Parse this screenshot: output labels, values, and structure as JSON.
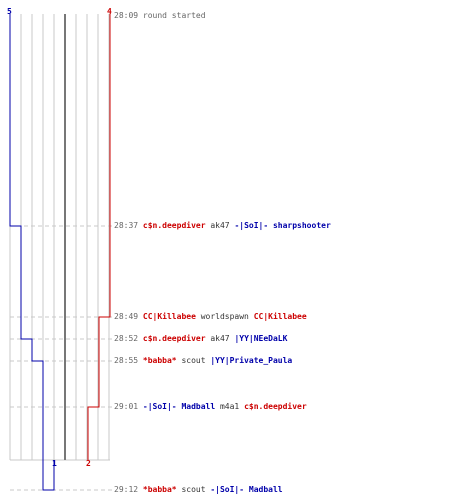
{
  "colors": {
    "team_red": "#cc0000",
    "team_blue": "#0000aa",
    "grid": "#c8c8c8",
    "center_line": "#777777",
    "dash": "#c8c8c8",
    "time": "#666666"
  },
  "score_labels": {
    "blue_top": "5",
    "red_top": "4",
    "blue_bottom": "1",
    "red_bottom": "2"
  },
  "events": [
    {
      "time": "28:09",
      "parts": [
        {
          "text": "round started",
          "cls": "time"
        }
      ]
    },
    {
      "time": "28:37",
      "parts": [
        {
          "text": "c$n.deepdiver",
          "cls": "red"
        },
        {
          "text": " ak47 ",
          "cls": "plain"
        },
        {
          "text": "-|SoI|- sharpshooter",
          "cls": "blue"
        }
      ]
    },
    {
      "time": "28:49",
      "parts": [
        {
          "text": "CC|Killabee",
          "cls": "red"
        },
        {
          "text": " worldspawn ",
          "cls": "plain"
        },
        {
          "text": "CC|Killabee",
          "cls": "red"
        }
      ]
    },
    {
      "time": "28:52",
      "parts": [
        {
          "text": "c$n.deepdiver",
          "cls": "red"
        },
        {
          "text": " ak47 ",
          "cls": "plain"
        },
        {
          "text": "|YY|NEeDaLK",
          "cls": "blue"
        }
      ]
    },
    {
      "time": "28:55",
      "parts": [
        {
          "text": "*babba*",
          "cls": "red"
        },
        {
          "text": " scout ",
          "cls": "plain"
        },
        {
          "text": "|YY|Private_Paula",
          "cls": "blue"
        }
      ]
    },
    {
      "time": "29:01",
      "parts": [
        {
          "text": "-|SoI|- Madball",
          "cls": "blue"
        },
        {
          "text": " m4a1 ",
          "cls": "plain"
        },
        {
          "text": "c$n.deepdiver",
          "cls": "red"
        }
      ]
    },
    {
      "time": "29:12",
      "parts": [
        {
          "text": "*babba*",
          "cls": "red"
        },
        {
          "text": " scout ",
          "cls": "plain"
        },
        {
          "text": "-|SoI|- Madball",
          "cls": "blue"
        }
      ]
    }
  ]
}
